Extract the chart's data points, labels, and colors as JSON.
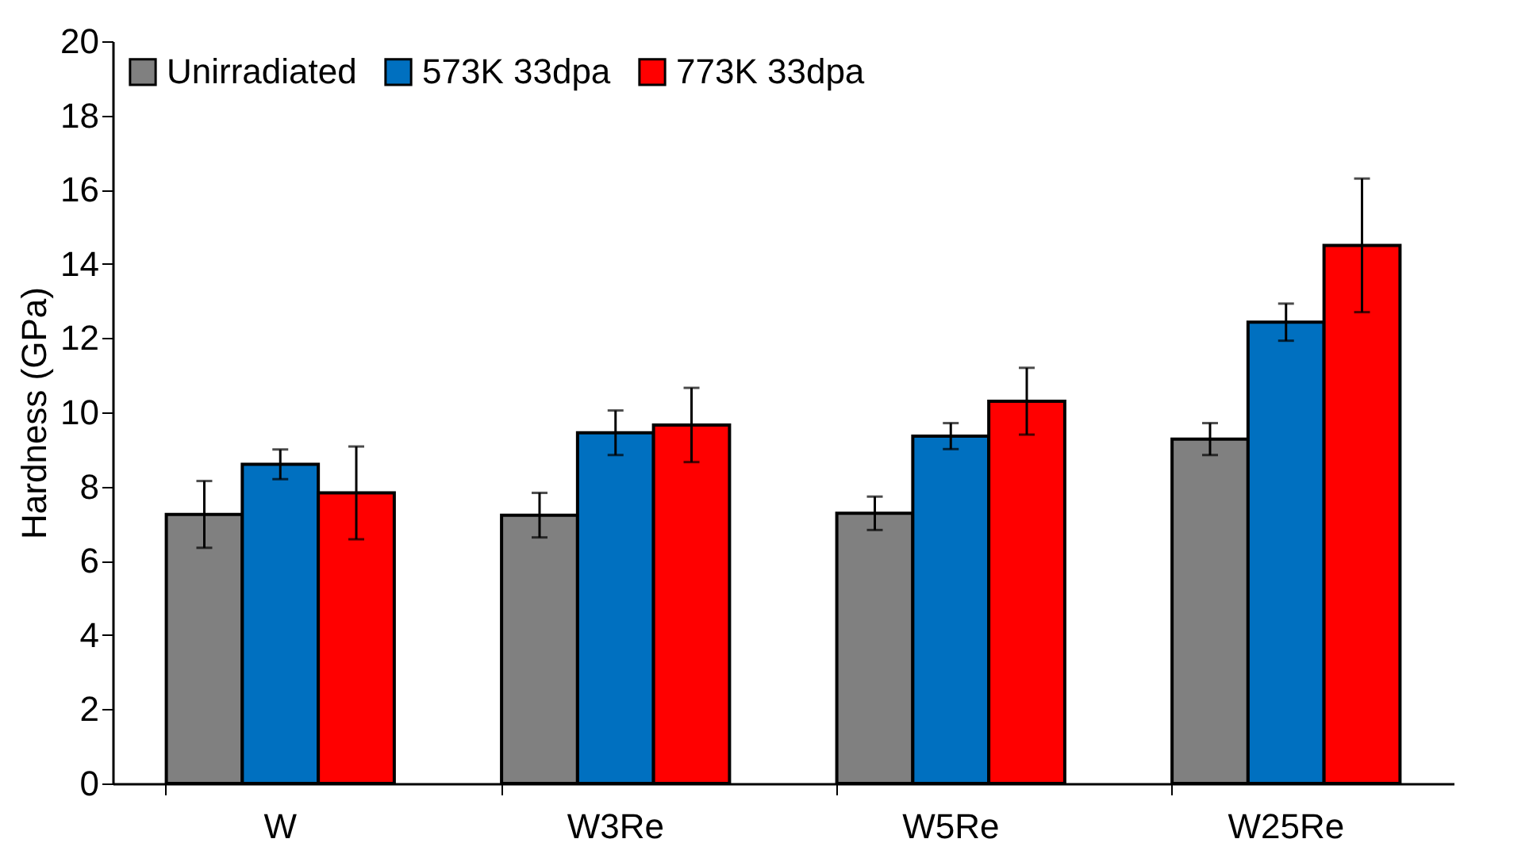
{
  "chart_data": {
    "type": "bar",
    "ylabel": "Hardness (GPa)",
    "categories": [
      "W",
      "W3Re",
      "W5Re",
      "W25Re"
    ],
    "series": [
      {
        "name": "Unirradiated",
        "color": "#808080",
        "values": [
          7.25,
          7.23,
          7.28,
          9.28
        ],
        "errors": [
          0.9,
          0.6,
          0.45,
          0.43
        ]
      },
      {
        "name": "573K 33dpa",
        "color": "#0070c0",
        "values": [
          8.6,
          9.45,
          9.36,
          12.43
        ],
        "errors": [
          0.4,
          0.6,
          0.35,
          0.5
        ]
      },
      {
        "name": "773K 33dpa",
        "color": "#ff0000",
        "values": [
          7.83,
          9.66,
          10.3,
          14.5
        ],
        "errors": [
          1.25,
          1.0,
          0.9,
          1.8
        ]
      }
    ],
    "ylim": [
      0,
      20
    ],
    "yticks": [
      0,
      2,
      4,
      6,
      8,
      10,
      12,
      14,
      16,
      18,
      20
    ],
    "grid": false,
    "legend": "top"
  }
}
